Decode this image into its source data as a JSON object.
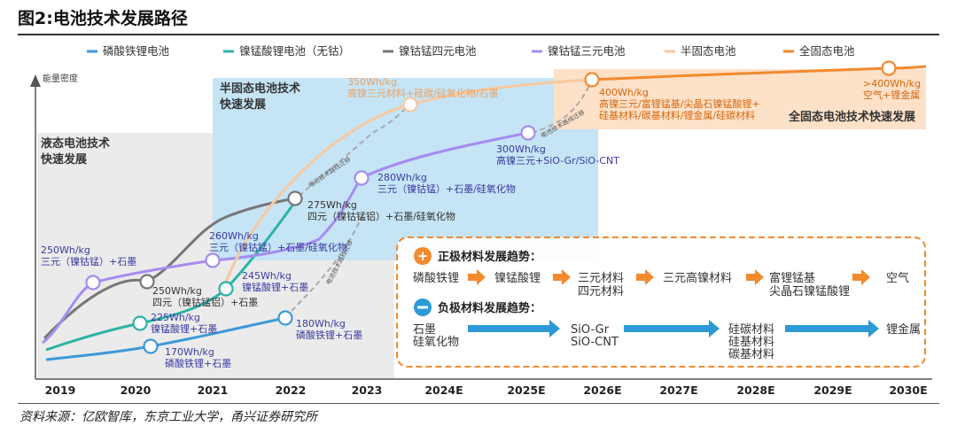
{
  "title": "图2:电池技术发展路径",
  "source": "资料来源：亿欧智库，东京工业大学，甬兴证券研究所",
  "chart_data": {
    "type": "line",
    "title": "图2:电池技术发展路径",
    "ylabel": "能量密度",
    "xlabel": "",
    "categories": [
      "2019",
      "2020",
      "2021",
      "2022",
      "2023",
      "2024E",
      "2025E",
      "2026E",
      "2027E",
      "2028E",
      "2029E",
      "2030E"
    ],
    "legend_position": "top",
    "series": [
      {
        "name": "磷酸铁锂电池",
        "color": "#3b9ad9"
      },
      {
        "name": "镍锰酸锂电池（无钴）",
        "color": "#2bb3a6"
      },
      {
        "name": "镍钴锰四元电池",
        "color": "#777777"
      },
      {
        "name": "镍钴锰三元电池",
        "color": "#a58cf0"
      },
      {
        "name": "半固态电池",
        "color": "#f7c9a0"
      },
      {
        "name": "全固态电池",
        "color": "#f28a2e"
      }
    ],
    "points": [
      {
        "series": 0,
        "value": "170Wh/kg",
        "l1": "170Wh/kg",
        "l2": "磷酸铁锂+石墨"
      },
      {
        "series": 0,
        "value": "180Wh/kg",
        "l1": "180Wh/kg",
        "l2": "磷酸铁锂+石墨"
      },
      {
        "series": 1,
        "value": "225Wh/kg",
        "l1": "225Wh/kg",
        "l2": "镍锰酸锂+石墨"
      },
      {
        "series": 1,
        "value": "245Wh/kg",
        "l1": "245Wh/kg",
        "l2": "镍锰酸锂+石墨"
      },
      {
        "series": 2,
        "value": "250Wh/kg",
        "l1": "250Wh/kg",
        "l2": "四元（镍钴锰铝）+石墨"
      },
      {
        "series": 2,
        "value": "275Wh/kg",
        "l1": "275Wh/kg",
        "l2": "四元（镍钴锰铝）+石墨/硅氧化物"
      },
      {
        "series": 3,
        "value": "250Wh/kg",
        "l1": "250Wh/kg",
        "l2": "三元（镍钴锰）+石墨"
      },
      {
        "series": 3,
        "value": "260Wh/kg",
        "l1": "260Wh/kg",
        "l2": "三元（镍钴锰）+石墨/硅氧化物"
      },
      {
        "series": 3,
        "value": "280Wh/kg",
        "l1": "280Wh/kg",
        "l2": "三元（镍钴锰）+石墨/硅氧化物"
      },
      {
        "series": 3,
        "value": "300Wh/kg",
        "l1": "300Wh/kg",
        "l2": "高镍三元+SiO-Gr/SiO-CNT"
      },
      {
        "series": 4,
        "value": "350Wh/kg",
        "l1": "350Wh/kg",
        "l2": "高镍三元材料+硅碳/硅氧化物/石墨"
      },
      {
        "series": 5,
        "value": "400Wh/kg",
        "l1": "400Wh/kg",
        "l2": "高镍三元/富锂锰基/尖晶石镍锰酸锂+",
        "l3": "硅基材料/碳基材料/锂金属/硅碳材料"
      },
      {
        "series": 5,
        "value": ">400Wh/kg",
        "l1": ">400Wh/kg",
        "l2": "空气+锂金属"
      }
    ],
    "eras": [
      "液态电池技术快速发展",
      "半固态电池技术快速发展",
      "全固态电池技术快速发展"
    ],
    "migration_label": "电池技术路线迁移",
    "trends": {
      "cathode_title": "正极材料发展趋势：",
      "cathode": [
        "磷酸铁锂",
        "镍锰酸锂",
        "三元材料\n四元材料",
        "三元高镍材料",
        "富锂锰基\n尖晶石镍锰酸锂",
        "空气"
      ],
      "anode_title": "负极材料发展趋势：",
      "anode": [
        "石墨\n硅氧化物",
        "SiO-Gr\nSiO-CNT",
        "硅碳材料\n硅基材料\n碳基材料",
        "锂金属"
      ]
    }
  }
}
